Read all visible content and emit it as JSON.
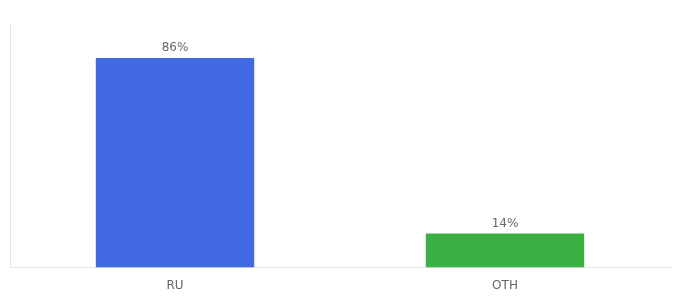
{
  "chart_data": {
    "type": "bar",
    "categories": [
      "RU",
      "OTH"
    ],
    "values": [
      86,
      14
    ],
    "value_labels": [
      "86%",
      "14%"
    ],
    "colors": [
      "#4169e1",
      "#3cb043"
    ],
    "ylim": [
      0,
      100
    ],
    "grid": false,
    "data_labels": true,
    "tick_labels": "x"
  }
}
